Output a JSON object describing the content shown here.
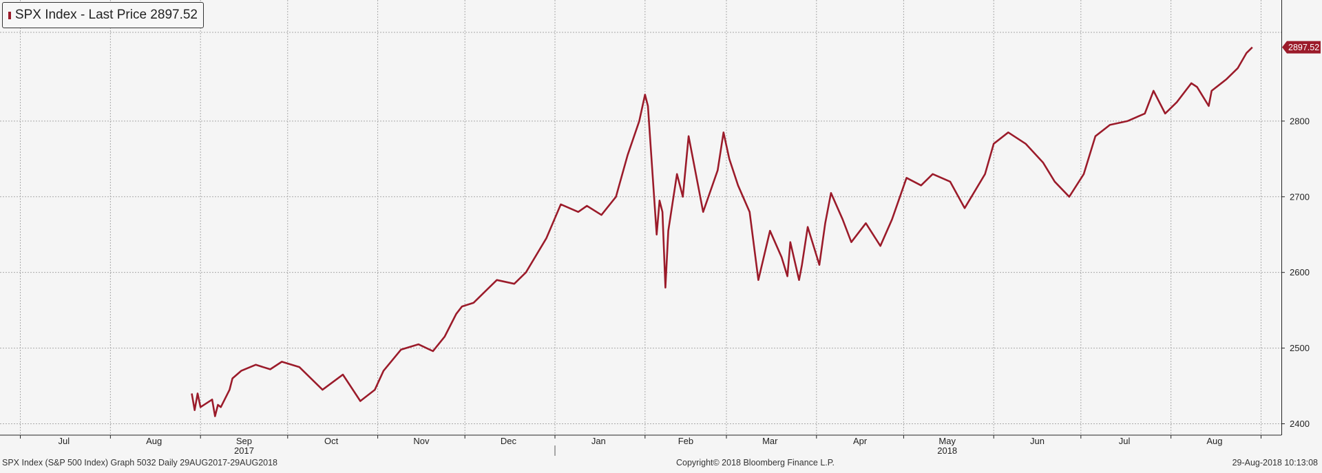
{
  "legend": {
    "label": "SPX Index - Last Price 2897.52"
  },
  "chart_data": {
    "type": "line",
    "series": [
      {
        "name": "SPX Index - Last Price",
        "color": "#9b1b2a",
        "last_value_label": "2897.52",
        "x": [
          "2017-08-29",
          "2017-08-30",
          "2017-08-31",
          "2017-09-01",
          "2017-09-05",
          "2017-09-06",
          "2017-09-07",
          "2017-09-08",
          "2017-09-11",
          "2017-09-12",
          "2017-09-15",
          "2017-09-20",
          "2017-09-25",
          "2017-09-29",
          "2017-10-05",
          "2017-10-13",
          "2017-10-20",
          "2017-10-26",
          "2017-10-31",
          "2017-11-03",
          "2017-11-09",
          "2017-11-15",
          "2017-11-20",
          "2017-11-24",
          "2017-11-28",
          "2017-11-30",
          "2017-12-04",
          "2017-12-08",
          "2017-12-12",
          "2017-12-18",
          "2017-12-22",
          "2017-12-29",
          "2018-01-03",
          "2018-01-09",
          "2018-01-12",
          "2018-01-17",
          "2018-01-22",
          "2018-01-26",
          "2018-01-30",
          "2018-02-01",
          "2018-02-02",
          "2018-02-05",
          "2018-02-06",
          "2018-02-07",
          "2018-02-08",
          "2018-02-09",
          "2018-02-12",
          "2018-02-14",
          "2018-02-16",
          "2018-02-21",
          "2018-02-26",
          "2018-02-28",
          "2018-03-02",
          "2018-03-05",
          "2018-03-09",
          "2018-03-12",
          "2018-03-16",
          "2018-03-20",
          "2018-03-22",
          "2018-03-23",
          "2018-03-26",
          "2018-03-27",
          "2018-03-29",
          "2018-04-02",
          "2018-04-04",
          "2018-04-06",
          "2018-04-10",
          "2018-04-13",
          "2018-04-18",
          "2018-04-23",
          "2018-04-27",
          "2018-05-02",
          "2018-05-07",
          "2018-05-11",
          "2018-05-17",
          "2018-05-22",
          "2018-05-29",
          "2018-06-01",
          "2018-06-06",
          "2018-06-12",
          "2018-06-18",
          "2018-06-22",
          "2018-06-27",
          "2018-07-02",
          "2018-07-06",
          "2018-07-11",
          "2018-07-17",
          "2018-07-23",
          "2018-07-26",
          "2018-07-30",
          "2018-08-03",
          "2018-08-08",
          "2018-08-10",
          "2018-08-14",
          "2018-08-15",
          "2018-08-20",
          "2018-08-24",
          "2018-08-27",
          "2018-08-29"
        ],
        "y": [
          2440,
          2418,
          2440,
          2422,
          2432,
          2410,
          2425,
          2422,
          2445,
          2460,
          2470,
          2478,
          2472,
          2482,
          2475,
          2445,
          2465,
          2430,
          2445,
          2470,
          2498,
          2505,
          2496,
          2515,
          2545,
          2555,
          2560,
          2575,
          2590,
          2585,
          2600,
          2645,
          2690,
          2680,
          2688,
          2676,
          2700,
          2755,
          2800,
          2835,
          2820,
          2650,
          2695,
          2680,
          2580,
          2655,
          2730,
          2700,
          2780,
          2680,
          2735,
          2785,
          2750,
          2715,
          2680,
          2590,
          2655,
          2620,
          2595,
          2640,
          2590,
          2610,
          2660,
          2610,
          2665,
          2705,
          2670,
          2640,
          2665,
          2635,
          2670,
          2725,
          2715,
          2730,
          2720,
          2685,
          2730,
          2770,
          2785,
          2770,
          2745,
          2720,
          2700,
          2730,
          2780,
          2795,
          2800,
          2810,
          2840,
          2810,
          2825,
          2850,
          2845,
          2820,
          2840,
          2855,
          2870,
          2890,
          2897.52
        ]
      }
    ],
    "ylim": [
      2385,
      2960
    ],
    "xlim": [
      "2017-06-24",
      "2018-09-08"
    ],
    "y_ticks": [
      2400,
      2500,
      2600,
      2700,
      2800
    ],
    "y_tick_labels": [
      "2400",
      "2500",
      "2600",
      "2700",
      "2800"
    ],
    "x_month_labels": [
      {
        "label": "Jul",
        "date": "2017-07-16"
      },
      {
        "label": "Aug",
        "date": "2017-08-16"
      },
      {
        "label": "Sep",
        "date": "2017-09-16"
      },
      {
        "label": "Oct",
        "date": "2017-10-16"
      },
      {
        "label": "Nov",
        "date": "2017-11-16"
      },
      {
        "label": "Dec",
        "date": "2017-12-16"
      },
      {
        "label": "Jan",
        "date": "2018-01-16"
      },
      {
        "label": "Feb",
        "date": "2018-02-15"
      },
      {
        "label": "Mar",
        "date": "2018-03-16"
      },
      {
        "label": "Apr",
        "date": "2018-04-16"
      },
      {
        "label": "May",
        "date": "2018-05-16"
      },
      {
        "label": "Jun",
        "date": "2018-06-16"
      },
      {
        "label": "Jul",
        "date": "2018-07-16"
      },
      {
        "label": "Aug",
        "date": "2018-08-16"
      }
    ],
    "x_month_boundaries": [
      "2017-07-01",
      "2017-08-01",
      "2017-09-01",
      "2017-10-01",
      "2017-11-01",
      "2017-12-01",
      "2018-01-01",
      "2018-02-01",
      "2018-03-01",
      "2018-04-01",
      "2018-05-01",
      "2018-06-01",
      "2018-07-01",
      "2018-08-01",
      "2018-09-01"
    ],
    "x_year_labels": [
      {
        "label": "2017",
        "date": "2017-09-16"
      },
      {
        "label": "2018",
        "date": "2018-05-16"
      }
    ],
    "year_divider": "2018-01-01",
    "grid": true
  },
  "footer": {
    "left": "SPX Index (S&P 500 Index) Graph 5032  Daily 29AUG2017-29AUG2018",
    "center": "Copyright© 2018 Bloomberg Finance L.P.",
    "right": "29-Aug-2018 10:13:08"
  }
}
